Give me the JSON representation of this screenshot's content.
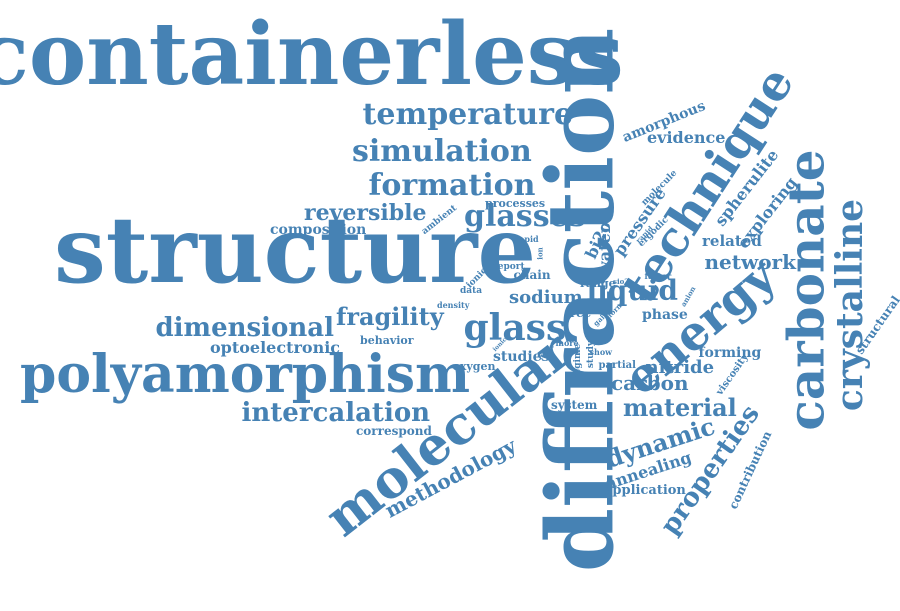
{
  "colors": {
    "word": "#4682b4",
    "background": "#ffffff"
  },
  "words": [
    "containerless",
    "structure",
    "diffraction",
    "polyamorphism",
    "molecular",
    "technique",
    "carbonate",
    "energy",
    "crystalline",
    "temperature",
    "simulation",
    "formation",
    "glasses",
    "glass",
    "reversible",
    "dimensional",
    "fragility",
    "liquid",
    "intercalation",
    "material",
    "dynamic",
    "properties",
    "methodology",
    "network",
    "carbon",
    "nitride",
    "optoelectronic",
    "annealing",
    "composition",
    "forming",
    "sodium",
    "evidence",
    "amorphous",
    "spherulite",
    "exploring",
    "related",
    "water",
    "bi2o",
    "pressure",
    "studies",
    "phase",
    "structural",
    "contribution",
    "application",
    "system",
    "correspond",
    "behavior",
    "oxygen",
    "chain",
    "range",
    "free",
    "partial",
    "processes",
    "ambient",
    "ergodic",
    "molecule",
    "viscosity",
    "data",
    "report",
    "ionic",
    "density",
    "regime",
    "study",
    "rapid",
    "factor",
    "anion",
    "show",
    "more",
    "ionic",
    "form",
    "gain",
    "sio2",
    "rapid",
    "ion",
    "ionic"
  ]
}
